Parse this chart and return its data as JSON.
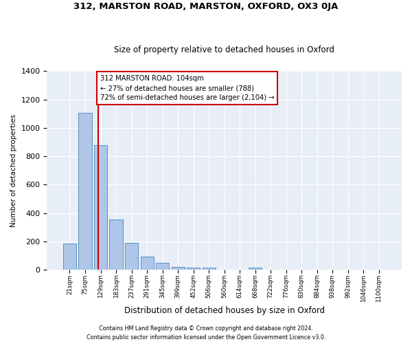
{
  "title1": "312, MARSTON ROAD, MARSTON, OXFORD, OX3 0JA",
  "title2": "Size of property relative to detached houses in Oxford",
  "xlabel": "Distribution of detached houses by size in Oxford",
  "ylabel": "Number of detached properties",
  "categories": [
    "21sqm",
    "75sqm",
    "129sqm",
    "183sqm",
    "237sqm",
    "291sqm",
    "345sqm",
    "399sqm",
    "452sqm",
    "506sqm",
    "560sqm",
    "614sqm",
    "668sqm",
    "722sqm",
    "776sqm",
    "830sqm",
    "884sqm",
    "938sqm",
    "992sqm",
    "1046sqm",
    "1100sqm"
  ],
  "bar_heights": [
    185,
    1105,
    880,
    355,
    190,
    95,
    50,
    20,
    17,
    15,
    0,
    0,
    15,
    0,
    0,
    0,
    0,
    0,
    0,
    0,
    0
  ],
  "bar_color": "#aec6e8",
  "bar_edge_color": "#5a8fc0",
  "property_line_x": 1.85,
  "annotation_line1": "312 MARSTON ROAD: 104sqm",
  "annotation_line2": "← 27% of detached houses are smaller (788)",
  "annotation_line3": "72% of semi-detached houses are larger (2,104) →",
  "annotation_box_color": "#ffffff",
  "annotation_box_edge": "#cc0000",
  "line_color": "#cc0000",
  "ylim": [
    0,
    1400
  ],
  "yticks": [
    0,
    200,
    400,
    600,
    800,
    1000,
    1200,
    1400
  ],
  "footer1": "Contains HM Land Registry data © Crown copyright and database right 2024.",
  "footer2": "Contains public sector information licensed under the Open Government Licence v3.0.",
  "bg_color": "#e8eef7",
  "fig_bg": "#ffffff"
}
